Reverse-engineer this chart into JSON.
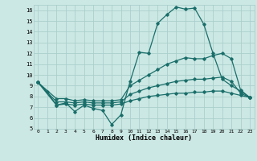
{
  "xlabel": "Humidex (Indice chaleur)",
  "xlim": [
    -0.5,
    23.5
  ],
  "ylim": [
    5,
    16.5
  ],
  "yticks": [
    5,
    6,
    7,
    8,
    9,
    10,
    11,
    12,
    13,
    14,
    15,
    16
  ],
  "xticks": [
    0,
    1,
    2,
    3,
    4,
    5,
    6,
    7,
    8,
    9,
    10,
    11,
    12,
    13,
    14,
    15,
    16,
    17,
    18,
    19,
    20,
    21,
    22,
    23
  ],
  "bg_color": "#cce8e4",
  "grid_color": "#aacfcc",
  "line_color": "#1a6e6a",
  "series": [
    {
      "x": [
        0,
        1,
        2,
        3,
        4,
        5,
        6,
        7,
        8,
        9,
        10,
        11,
        12,
        13,
        14,
        15,
        16,
        17,
        18,
        19,
        20,
        21,
        22,
        23
      ],
      "y": [
        9.3,
        8.4,
        7.2,
        7.4,
        6.6,
        7.2,
        6.9,
        6.7,
        5.4,
        6.3,
        9.4,
        12.1,
        12.0,
        14.8,
        15.6,
        16.3,
        16.1,
        16.2,
        14.7,
        12.0,
        9.6,
        9.0,
        8.5,
        7.9
      ]
    },
    {
      "x": [
        0,
        2,
        3,
        4,
        5,
        6,
        7,
        8,
        9,
        10,
        11,
        12,
        13,
        14,
        15,
        16,
        17,
        18,
        19,
        20,
        21,
        22,
        23
      ],
      "y": [
        9.3,
        7.8,
        7.8,
        7.6,
        7.7,
        7.6,
        7.6,
        7.6,
        7.7,
        9.0,
        9.5,
        10.0,
        10.5,
        11.0,
        11.3,
        11.6,
        11.5,
        11.5,
        11.8,
        12.0,
        11.5,
        8.6,
        7.9
      ]
    },
    {
      "x": [
        0,
        2,
        3,
        4,
        5,
        6,
        7,
        8,
        9,
        10,
        11,
        12,
        13,
        14,
        15,
        16,
        17,
        18,
        19,
        20,
        21,
        22,
        23
      ],
      "y": [
        9.3,
        7.5,
        7.5,
        7.4,
        7.5,
        7.4,
        7.4,
        7.4,
        7.5,
        8.2,
        8.5,
        8.8,
        9.0,
        9.2,
        9.4,
        9.5,
        9.6,
        9.6,
        9.7,
        9.8,
        9.4,
        8.3,
        7.9
      ]
    },
    {
      "x": [
        0,
        2,
        3,
        4,
        5,
        6,
        7,
        8,
        9,
        10,
        11,
        12,
        13,
        14,
        15,
        16,
        17,
        18,
        19,
        20,
        21,
        22,
        23
      ],
      "y": [
        9.3,
        7.2,
        7.3,
        7.2,
        7.3,
        7.2,
        7.2,
        7.2,
        7.3,
        7.6,
        7.8,
        8.0,
        8.1,
        8.2,
        8.3,
        8.3,
        8.4,
        8.4,
        8.5,
        8.5,
        8.3,
        8.1,
        7.9
      ]
    }
  ]
}
